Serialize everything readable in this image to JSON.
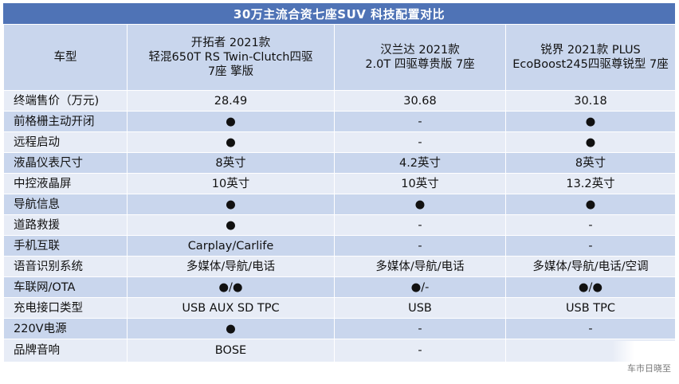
{
  "title": "30万主流合资七座SUV 科技配置对比",
  "header": {
    "label": "车型",
    "models": [
      {
        "line1": "开拓者 2021款",
        "line2": "轻混650T RS Twin-Clutch四驱",
        "line3": "7座 擎版"
      },
      {
        "line1": "汉兰达 2021款",
        "line2": "2.0T 四驱尊贵版 7座",
        "line3": ""
      },
      {
        "line1": "锐界 2021款 PLUS",
        "line2": "EcoBoost245四驱尊锐型 7座",
        "line3": ""
      }
    ]
  },
  "rows": [
    {
      "label": "终端售价（万元)",
      "values": [
        "28.49",
        "30.68",
        "30.18"
      ]
    },
    {
      "label": "前格栅主动开闭",
      "values": [
        "●",
        "-",
        "●"
      ]
    },
    {
      "label": "远程启动",
      "values": [
        "●",
        "-",
        "●"
      ]
    },
    {
      "label": "液晶仪表尺寸",
      "values": [
        "8英寸",
        "4.2英寸",
        "8英寸"
      ]
    },
    {
      "label": "中控液晶屏",
      "values": [
        "10英寸",
        "10英寸",
        "13.2英寸"
      ]
    },
    {
      "label": "导航信息",
      "values": [
        "●",
        "●",
        "●"
      ]
    },
    {
      "label": "道路救援",
      "values": [
        "●",
        "-",
        "-"
      ]
    },
    {
      "label": "手机互联",
      "values": [
        "Carplay/Carlife",
        "-",
        "-"
      ]
    },
    {
      "label": "语音识别系统",
      "values": [
        "多媒体/导航/电话",
        "多媒体/导航/电话",
        "多媒体/导航/电话/空调"
      ]
    },
    {
      "label": "车联网/OTA",
      "values": [
        "●/●",
        "●/-",
        "●/●"
      ]
    },
    {
      "label": "充电接口类型",
      "values": [
        "USB AUX SD TPC",
        "USB",
        "USB TPC"
      ]
    },
    {
      "label": "220V电源",
      "values": [
        "●",
        "-",
        "-"
      ]
    },
    {
      "label": "品牌音响",
      "values": [
        "BOSE",
        "-",
        ""
      ]
    }
  ],
  "watermark": "车市日晓至"
}
